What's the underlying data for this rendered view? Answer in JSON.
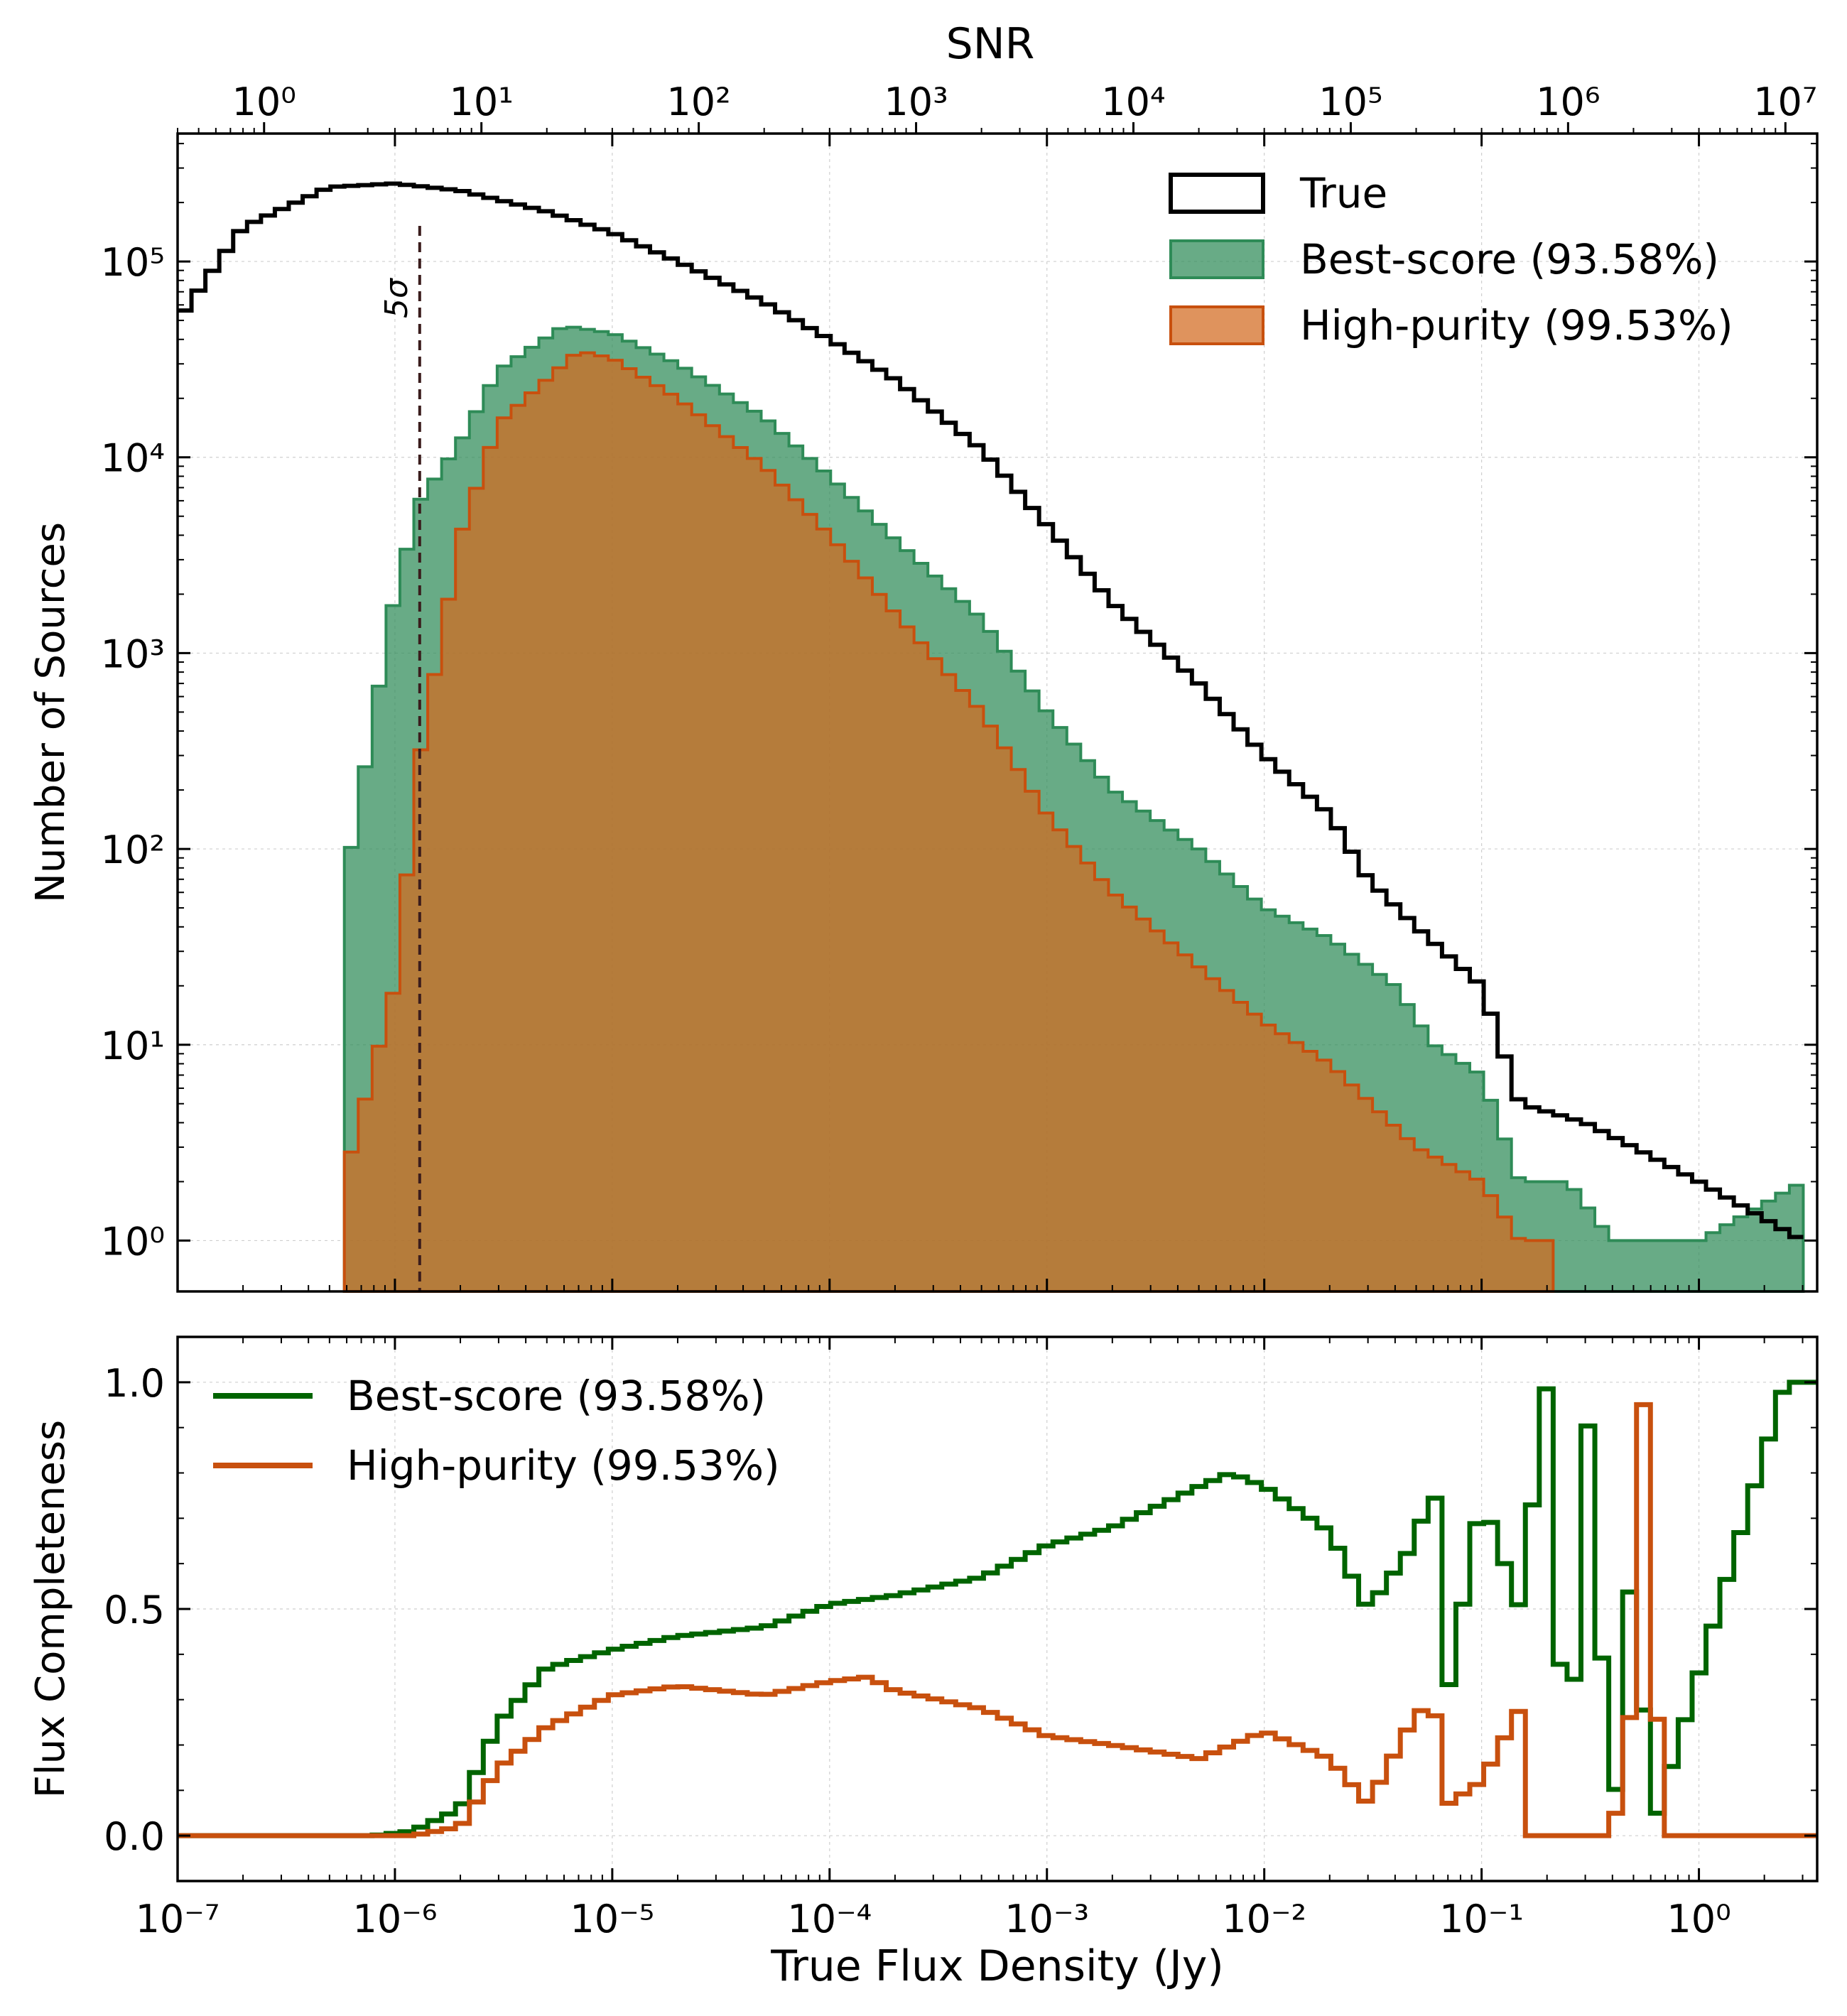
{
  "colors": {
    "true": "#000000",
    "best": "#006400",
    "best_fill": "#2e8b57",
    "high": "#c8500e",
    "high_fill": "#d2691e",
    "overlap_fill": "#a56b30",
    "sigma_line": "#3a1c1c"
  },
  "chart_data": [
    {
      "type": "histogram",
      "ylabel": "Number of Sources",
      "top_axis_label": "SNR",
      "y_scale": "log",
      "x_scale": "log",
      "xlim": [
        1e-07,
        3.5
      ],
      "ylim": [
        0.55,
        450000
      ],
      "top_xlim": [
        0.4,
        14000000.0
      ],
      "y_tick_labels": [
        "10⁰",
        "10¹",
        "10²",
        "10³",
        "10⁴",
        "10⁵"
      ],
      "top_tick_labels": [
        "10⁰",
        "10¹",
        "10²",
        "10³",
        "10⁴",
        "10⁵",
        "10⁶",
        "10⁷"
      ],
      "grid": true,
      "legend_position": "top-right",
      "annotation": {
        "text": "5σ",
        "x": 1.3e-06
      },
      "series": [
        {
          "key": "true",
          "name": "True",
          "style": "step-outline",
          "points": [
            [
              1e-07,
              50000
            ],
            [
              2e-07,
              150000
            ],
            [
              5e-07,
              240000
            ],
            [
              1e-06,
              250000
            ],
            [
              2e-06,
              230000
            ],
            [
              5e-06,
              180000
            ],
            [
              1e-05,
              140000
            ],
            [
              2e-05,
              100000
            ],
            [
              5e-05,
              62000
            ],
            [
              0.0001,
              40000
            ],
            [
              0.0002,
              25000
            ],
            [
              0.0005,
              11000
            ],
            [
              0.001,
              4500
            ],
            [
              0.002,
              1800
            ],
            [
              0.005,
              700
            ],
            [
              0.01,
              300
            ],
            [
              0.02,
              150
            ],
            [
              0.03,
              70
            ],
            [
              0.05,
              40
            ],
            [
              0.1,
              20
            ],
            [
              0.15,
              5
            ],
            [
              0.3,
              4
            ],
            [
              0.5,
              3
            ],
            [
              1,
              2
            ],
            [
              3,
              1
            ]
          ]
        },
        {
          "key": "best",
          "name": "Best-score (93.58%)",
          "style": "step-filled",
          "points": [
            [
              5.8e-07,
              60
            ],
            [
              1e-06,
              2000
            ],
            [
              1.3e-06,
              6000
            ],
            [
              2e-06,
              12000
            ],
            [
              3e-06,
              28000
            ],
            [
              6e-06,
              47000
            ],
            [
              1e-05,
              43000
            ],
            [
              2e-05,
              30000
            ],
            [
              5e-05,
              16000
            ],
            [
              0.0001,
              8000
            ],
            [
              0.0002,
              3800
            ],
            [
              0.0005,
              1500
            ],
            [
              0.001,
              500
            ],
            [
              0.002,
              200
            ],
            [
              0.005,
              100
            ],
            [
              0.01,
              50
            ],
            [
              0.02,
              35
            ],
            [
              0.04,
              20
            ],
            [
              0.06,
              10
            ],
            [
              0.1,
              7
            ],
            [
              0.15,
              2
            ],
            [
              0.25,
              2
            ],
            [
              0.4,
              1
            ],
            [
              1,
              1
            ],
            [
              3,
              2
            ]
          ]
        },
        {
          "key": "high",
          "name": "High-purity (99.53%)",
          "style": "step-filled",
          "points": [
            [
              5.8e-07,
              2
            ],
            [
              1e-06,
              20
            ],
            [
              1.3e-06,
              300
            ],
            [
              2e-06,
              4000
            ],
            [
              3e-06,
              15000
            ],
            [
              7e-06,
              35000
            ],
            [
              1e-05,
              32000
            ],
            [
              2e-05,
              20000
            ],
            [
              5e-05,
              9000
            ],
            [
              0.0001,
              4000
            ],
            [
              0.0002,
              1600
            ],
            [
              0.0005,
              500
            ],
            [
              0.001,
              150
            ],
            [
              0.002,
              60
            ],
            [
              0.005,
              25
            ],
            [
              0.01,
              13
            ],
            [
              0.02,
              8
            ],
            [
              0.05,
              3
            ],
            [
              0.1,
              2
            ],
            [
              0.15,
              1
            ],
            [
              0.2,
              1
            ]
          ]
        }
      ],
      "legend": [
        {
          "label": "True",
          "key": "true"
        },
        {
          "label": "Best-score (93.58%)",
          "key": "best"
        },
        {
          "label": "High-purity (99.53%)",
          "key": "high"
        }
      ]
    },
    {
      "type": "line",
      "xlabel": "True Flux Density (Jy)",
      "ylabel": "Flux Completeness",
      "x_scale": "log",
      "xlim": [
        1e-07,
        3.5
      ],
      "ylim": [
        -0.1,
        1.1
      ],
      "y_tick_labels": [
        "0.0",
        "0.5",
        "1.0"
      ],
      "x_tick_labels": [
        "10⁻⁷",
        "10⁻⁶",
        "10⁻⁵",
        "10⁻⁴",
        "10⁻³",
        "10⁻²",
        "10⁻¹",
        "10⁰"
      ],
      "grid": true,
      "legend_position": "top-left",
      "series": [
        {
          "key": "best",
          "name": "Best-score (93.58%)",
          "points": [
            [
              1e-07,
              0
            ],
            [
              8e-07,
              0
            ],
            [
              1.2e-06,
              0.01
            ],
            [
              2e-06,
              0.06
            ],
            [
              3e-06,
              0.25
            ],
            [
              5e-06,
              0.37
            ],
            [
              1e-05,
              0.41
            ],
            [
              2e-05,
              0.44
            ],
            [
              5e-05,
              0.46
            ],
            [
              0.0001,
              0.51
            ],
            [
              0.0002,
              0.53
            ],
            [
              0.0005,
              0.57
            ],
            [
              0.001,
              0.64
            ],
            [
              0.002,
              0.68
            ],
            [
              0.005,
              0.77
            ],
            [
              0.007,
              0.8
            ],
            [
              0.01,
              0.77
            ],
            [
              0.02,
              0.67
            ],
            [
              0.03,
              0.5
            ],
            [
              0.05,
              0.65
            ],
            [
              0.06,
              0.8
            ],
            [
              0.07,
              0.32
            ],
            [
              0.1,
              0.75
            ],
            [
              0.15,
              0.5
            ],
            [
              0.2,
              1.0
            ],
            [
              0.25,
              0.0
            ],
            [
              0.3,
              1.0
            ],
            [
              0.4,
              0.0
            ],
            [
              0.5,
              0.66
            ],
            [
              0.6,
              0.0
            ],
            [
              2.5,
              1.0
            ],
            [
              3,
              1.0
            ]
          ]
        },
        {
          "key": "high",
          "name": "High-purity (99.53%)",
          "points": [
            [
              1e-07,
              0
            ],
            [
              8e-07,
              0
            ],
            [
              1.2e-06,
              0.0
            ],
            [
              2e-06,
              0.02
            ],
            [
              3e-06,
              0.15
            ],
            [
              5e-06,
              0.24
            ],
            [
              1e-05,
              0.31
            ],
            [
              2e-05,
              0.33
            ],
            [
              5e-05,
              0.31
            ],
            [
              0.0001,
              0.34
            ],
            [
              0.00015,
              0.35
            ],
            [
              0.0002,
              0.32
            ],
            [
              0.0005,
              0.28
            ],
            [
              0.001,
              0.22
            ],
            [
              0.002,
              0.2
            ],
            [
              0.005,
              0.17
            ],
            [
              0.01,
              0.23
            ],
            [
              0.02,
              0.17
            ],
            [
              0.03,
              0.07
            ],
            [
              0.05,
              0.27
            ],
            [
              0.06,
              0.29
            ],
            [
              0.07,
              0.07
            ],
            [
              0.1,
              0.12
            ],
            [
              0.15,
              0.28
            ],
            [
              0.17,
              0.0
            ],
            [
              0.4,
              0.0
            ],
            [
              0.5,
              0.32
            ],
            [
              0.55,
              1.0
            ],
            [
              0.68,
              0.0
            ],
            [
              3,
              0.0
            ]
          ]
        }
      ],
      "legend": [
        {
          "label": "Best-score (93.58%)",
          "key": "best"
        },
        {
          "label": "High-purity (99.53%)",
          "key": "high"
        }
      ]
    }
  ]
}
